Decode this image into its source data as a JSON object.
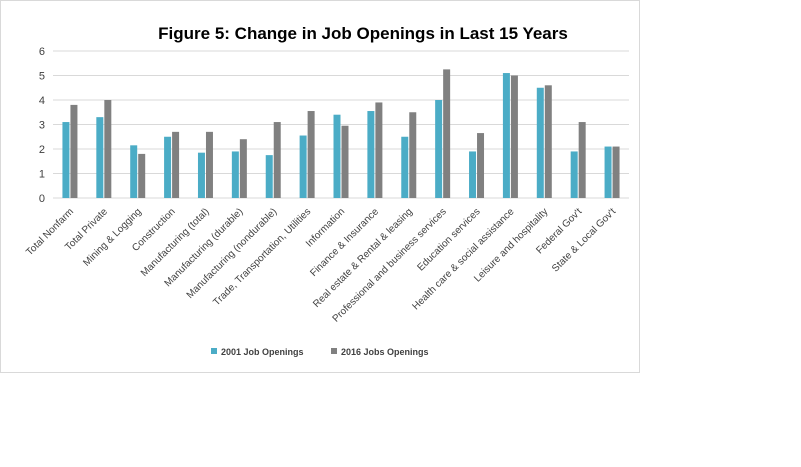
{
  "chart_data": {
    "type": "bar",
    "title": "Figure 5: Change in Job Openings in Last 15 Years",
    "xlabel": "",
    "ylabel": "",
    "ylim": [
      0,
      6
    ],
    "yticks": [
      "0",
      "1",
      "2",
      "3",
      "4",
      "5",
      "6"
    ],
    "grid": true,
    "legend_position": "bottom",
    "colors": [
      "#4bacc6",
      "#808080"
    ],
    "categories": [
      "Total Nonfarm",
      "Total Private",
      "Mining & Logging",
      "Construction",
      "Manufacturing (total)",
      "Manufacturing (durable)",
      "Manufacturing (nondurable)",
      "Trade, Transportation, Utilities",
      "Information",
      "Finance & Insurance",
      "Real estate & Rental & leasing",
      "Professional and business services",
      "Education services",
      "Health care & social assistance",
      "Leisure and hospitality",
      "Federal Gov't",
      "State & Local Gov't"
    ],
    "series": [
      {
        "name": "2001 Job Openings",
        "values": [
          3.1,
          3.3,
          2.15,
          2.5,
          1.85,
          1.9,
          1.75,
          2.55,
          3.4,
          3.55,
          2.5,
          4.0,
          1.9,
          5.1,
          4.5,
          1.9,
          2.1
        ]
      },
      {
        "name": "2016 Jobs Openings",
        "values": [
          3.8,
          4.0,
          1.8,
          2.7,
          2.7,
          2.4,
          3.1,
          3.55,
          2.95,
          3.9,
          3.5,
          5.25,
          2.65,
          5.0,
          4.6,
          3.1,
          2.1
        ]
      }
    ]
  }
}
